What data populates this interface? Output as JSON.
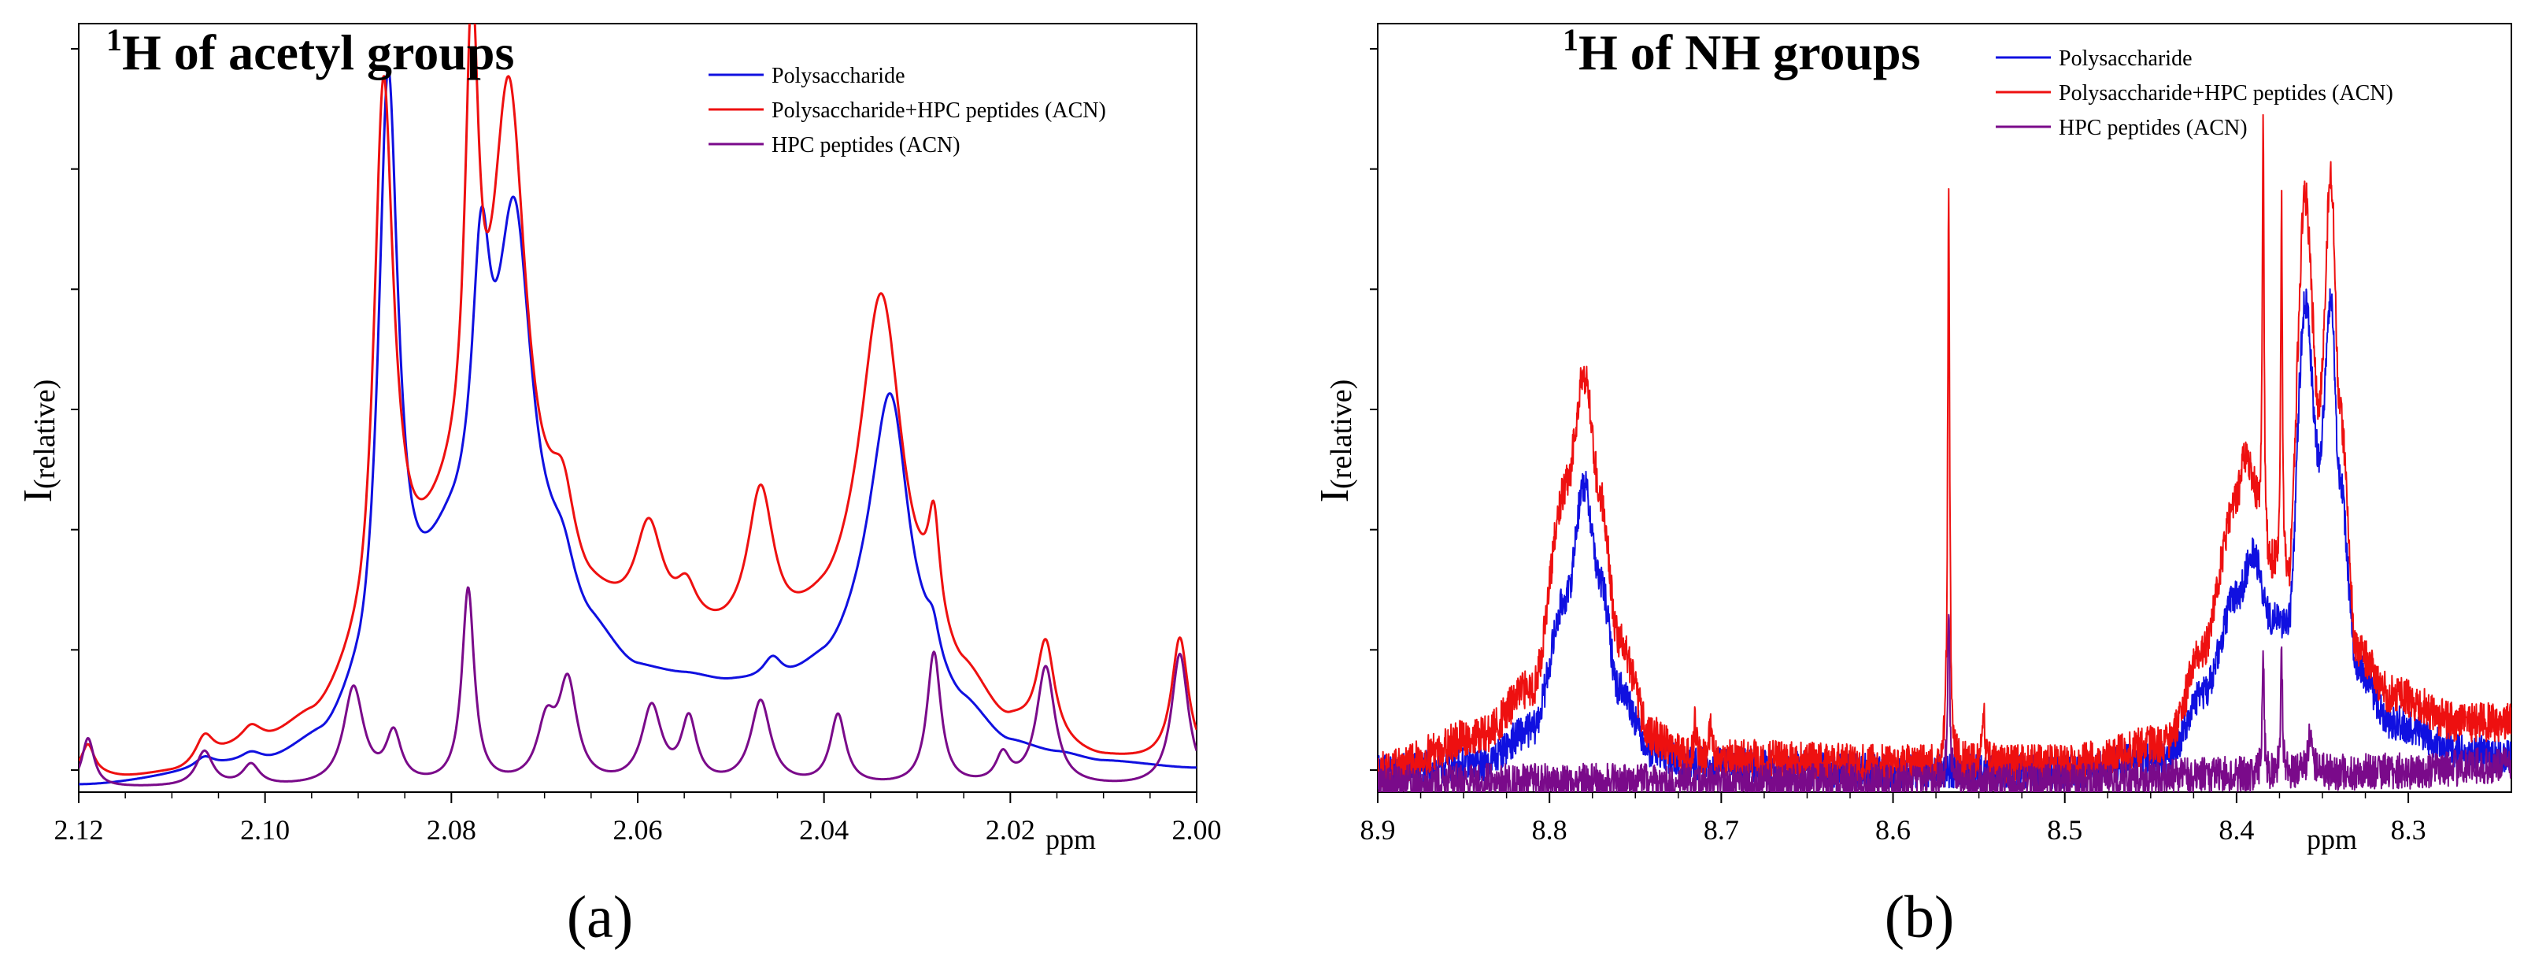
{
  "figure": {
    "panels": [
      {
        "id": "a",
        "title": "H of acetyl groups",
        "title_superscript": "1",
        "letter": "(a)",
        "ylabel_main": "I",
        "ylabel_sub": "(relative)",
        "xlabel": "ppm"
      },
      {
        "id": "b",
        "title": "H of NH groups",
        "title_superscript": "1",
        "letter": "(b)",
        "ylabel_main": "I",
        "ylabel_sub": "(relative)",
        "xlabel": "ppm"
      }
    ]
  },
  "chart_data": [
    {
      "type": "line",
      "title": "1H of acetyl groups",
      "xlabel": "ppm",
      "ylabel": "I(relative)",
      "xlim": [
        2.12,
        2.0
      ],
      "x_reversed": true,
      "ylim": [
        0,
        110
      ],
      "x_ticks": [
        2.12,
        2.1,
        2.08,
        2.06,
        2.04,
        2.02,
        2.0
      ],
      "x_tick_labels": [
        "2.12",
        "2.10",
        "2.08",
        "2.06",
        "2.04",
        "2.02",
        "2.00"
      ],
      "y_ticks_count": 6,
      "legend_position": "top-right",
      "series": [
        {
          "name": "Polysaccharide",
          "color": "#1010e0",
          "base": [
            [
              2.12,
              0.8
            ],
            [
              2.1,
              3.5
            ],
            [
              2.094,
              6
            ],
            [
              2.09,
              10
            ],
            [
              2.085,
              22
            ],
            [
              2.08,
              30
            ],
            [
              2.075,
              28
            ],
            [
              2.07,
              24
            ],
            [
              2.065,
              20
            ],
            [
              2.06,
              16
            ],
            [
              2.055,
              15.5
            ],
            [
              2.05,
              14.5
            ],
            [
              2.045,
              14
            ],
            [
              2.04,
              16
            ],
            [
              2.035,
              20
            ],
            [
              2.03,
              14
            ],
            [
              2.025,
              10
            ],
            [
              2.02,
              6
            ],
            [
              2.015,
              5
            ],
            [
              2.01,
              4
            ],
            [
              2.0,
              3.2
            ]
          ],
          "peaks": [
            [
              2.1065,
              1.5,
              0.0012
            ],
            [
              2.1015,
              1.2,
              0.0013
            ],
            [
              2.0868,
              83,
              0.00125
            ],
            [
              2.0768,
              38,
              0.0012
            ],
            [
              2.0732,
              53,
              0.0023
            ],
            [
              2.068,
              6,
              0.0016
            ],
            [
              2.0455,
              3.5,
              0.0013
            ],
            [
              2.0328,
              39,
              0.0025
            ],
            [
              2.0283,
              4,
              0.0008
            ]
          ]
        },
        {
          "name": "Polysaccharide+HPC peptides (ACN)",
          "color": "#ee1010",
          "base": [
            [
              2.12,
              2.5
            ],
            [
              2.115,
              1.8
            ],
            [
              2.11,
              2.2
            ],
            [
              2.1,
              6.5
            ],
            [
              2.095,
              9
            ],
            [
              2.09,
              14
            ],
            [
              2.085,
              28
            ],
            [
              2.08,
              34
            ],
            [
              2.075,
              33
            ],
            [
              2.07,
              29
            ],
            [
              2.065,
              24
            ],
            [
              2.06,
              22
            ],
            [
              2.055,
              21
            ],
            [
              2.05,
              20
            ],
            [
              2.045,
              20
            ],
            [
              2.04,
              22
            ],
            [
              2.035,
              25
            ],
            [
              2.03,
              20
            ],
            [
              2.025,
              14
            ],
            [
              2.02,
              8
            ],
            [
              2.015,
              5
            ],
            [
              2.01,
              4
            ],
            [
              2.0,
              3.5
            ]
          ],
          "peaks": [
            [
              2.119,
              4,
              0.0008
            ],
            [
              2.1065,
              4,
              0.0012
            ],
            [
              2.1015,
              2,
              0.0012
            ],
            [
              2.0873,
              78,
              0.00125
            ],
            [
              2.0778,
              65,
              0.0009
            ],
            [
              2.0738,
              65,
              0.0022
            ],
            [
              2.068,
              10,
              0.0015
            ],
            [
              2.0588,
              14,
              0.0018
            ],
            [
              2.0548,
              5,
              0.0013
            ],
            [
              2.0468,
              21,
              0.0017
            ],
            [
              2.0338,
              46,
              0.0027
            ],
            [
              2.0282,
              14,
              0.00075
            ],
            [
              2.0162,
              15,
              0.0012
            ],
            [
              2.0018,
              18,
              0.0011
            ]
          ]
        },
        {
          "name": "HPC peptides (ACN)",
          "color": "#7a0a8a",
          "base": [
            [
              2.12,
              0.6
            ],
            [
              2.0,
              0.6
            ]
          ],
          "peaks": [
            [
              2.119,
              7,
              0.0008
            ],
            [
              2.1065,
              5,
              0.0011
            ],
            [
              2.1015,
              3,
              0.0011
            ],
            [
              2.0905,
              14,
              0.0013
            ],
            [
              2.0862,
              7,
              0.001
            ],
            [
              2.0782,
              28,
              0.0008
            ],
            [
              2.0698,
              8,
              0.0012
            ],
            [
              2.0675,
              14,
              0.0012
            ],
            [
              2.0585,
              11,
              0.0013
            ],
            [
              2.0545,
              9,
              0.001
            ],
            [
              2.0468,
              12,
              0.0013
            ],
            [
              2.0385,
              10,
              0.001
            ],
            [
              2.0282,
              19,
              0.0009
            ],
            [
              2.0208,
              4,
              0.0009
            ],
            [
              2.0162,
              17,
              0.0012
            ],
            [
              2.0018,
              19,
              0.0011
            ]
          ]
        }
      ]
    },
    {
      "type": "line",
      "title": "1H of NH groups",
      "xlabel": "ppm",
      "ylabel": "I(relative)",
      "xlim": [
        8.9,
        8.24
      ],
      "x_reversed": true,
      "ylim": [
        0,
        110
      ],
      "x_ticks": [
        8.9,
        8.8,
        8.7,
        8.6,
        8.5,
        8.4,
        8.3
      ],
      "x_tick_labels": [
        "8.9",
        "8.8",
        "8.7",
        "8.6",
        "8.5",
        "8.4",
        "8.3"
      ],
      "y_ticks_count": 6,
      "legend_position": "top-right",
      "series": [
        {
          "name": "Polysaccharide",
          "color": "#1010e0",
          "base": [
            [
              8.9,
              3
            ],
            [
              8.84,
              4
            ],
            [
              8.81,
              9
            ],
            [
              8.79,
              28
            ],
            [
              8.78,
              44
            ],
            [
              8.77,
              30
            ],
            [
              8.76,
              15
            ],
            [
              8.74,
              6
            ],
            [
              8.72,
              4
            ],
            [
              8.6,
              3
            ],
            [
              8.5,
              3
            ],
            [
              8.44,
              5
            ],
            [
              8.42,
              14
            ],
            [
              8.4,
              28
            ],
            [
              8.39,
              34
            ],
            [
              8.38,
              25
            ],
            [
              8.37,
              24
            ],
            [
              8.36,
              70
            ],
            [
              8.352,
              48
            ],
            [
              8.345,
              70
            ],
            [
              8.34,
              45
            ],
            [
              8.33,
              18
            ],
            [
              8.31,
              10
            ],
            [
              8.27,
              6
            ],
            [
              8.24,
              5
            ]
          ],
          "peaks": [],
          "noise": 2.5
        },
        {
          "name": "Polysaccharide+HPC peptides (ACN)",
          "color": "#ee1010",
          "base": [
            [
              8.9,
              3
            ],
            [
              8.84,
              8
            ],
            [
              8.81,
              15
            ],
            [
              8.79,
              44
            ],
            [
              8.78,
              60
            ],
            [
              8.77,
              42
            ],
            [
              8.76,
              22
            ],
            [
              8.74,
              8
            ],
            [
              8.72,
              5
            ],
            [
              8.6,
              4
            ],
            [
              8.5,
              4
            ],
            [
              8.44,
              7
            ],
            [
              8.42,
              20
            ],
            [
              8.4,
              42
            ],
            [
              8.395,
              48
            ],
            [
              8.38,
              32
            ],
            [
              8.37,
              30
            ],
            [
              8.36,
              85
            ],
            [
              8.352,
              55
            ],
            [
              8.345,
              88
            ],
            [
              8.34,
              55
            ],
            [
              8.33,
              20
            ],
            [
              8.31,
              14
            ],
            [
              8.27,
              10
            ],
            [
              8.24,
              10
            ]
          ],
          "peaks": [
            [
              8.7152,
              5,
              0.0008
            ],
            [
              8.7062,
              5,
              0.0008
            ],
            [
              8.5676,
              80,
              0.0007
            ],
            [
              8.5475,
              8,
              0.001
            ],
            [
              8.3845,
              60,
              0.0006
            ],
            [
              8.3738,
              55,
              0.0006
            ]
          ],
          "noise": 2.8
        },
        {
          "name": "HPC peptides (ACN)",
          "color": "#7a0a8a",
          "base": [
            [
              8.9,
              1.5
            ],
            [
              8.5,
              1.5
            ],
            [
              8.4,
              2.5
            ],
            [
              8.3,
              3
            ],
            [
              8.24,
              4
            ]
          ],
          "peaks": [
            [
              8.5676,
              25,
              0.0007
            ],
            [
              8.3845,
              18,
              0.0006
            ],
            [
              8.3738,
              18,
              0.0006
            ],
            [
              8.357,
              6,
              0.0015
            ]
          ],
          "noise": 2.6
        }
      ]
    }
  ]
}
